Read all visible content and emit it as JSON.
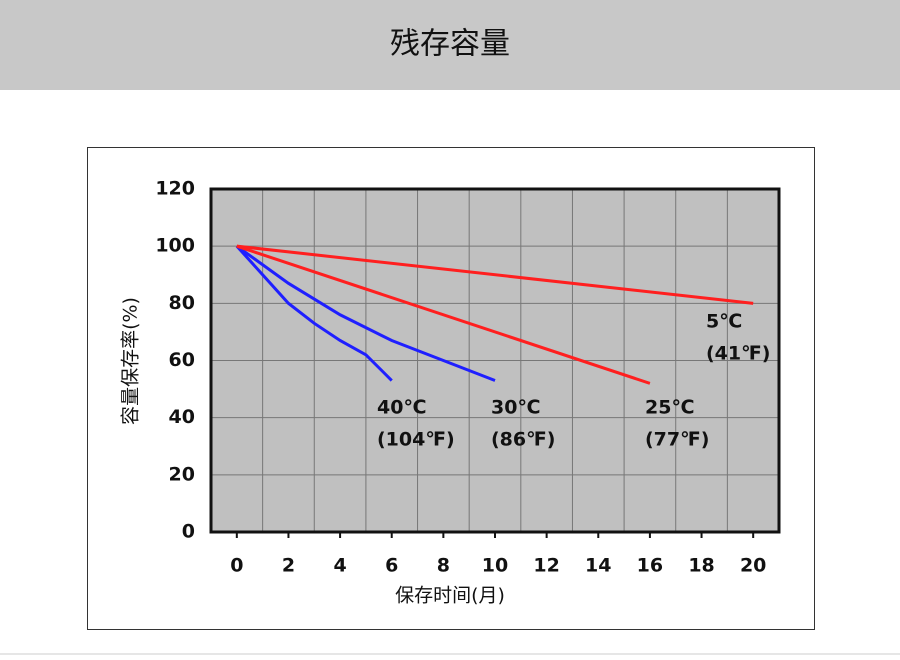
{
  "header": {
    "title": "残存容量"
  },
  "chart_data": {
    "type": "line",
    "x_label": "保存时间(月)",
    "y_label": "容量保存率(%)",
    "xlim": [
      -1,
      21
    ],
    "xticks": [
      0,
      2,
      4,
      6,
      8,
      10,
      12,
      14,
      16,
      18,
      20
    ],
    "ylim": [
      0,
      120
    ],
    "yticks": [
      0,
      20,
      40,
      60,
      80,
      100,
      120
    ],
    "grid": true,
    "series": [
      {
        "name": "40℃",
        "alt_name": "(104℉)",
        "color": "#1f1fff",
        "x": [
          0,
          1,
          2,
          3,
          4,
          5,
          6
        ],
        "values": [
          100,
          90,
          80,
          73,
          67,
          62,
          53
        ]
      },
      {
        "name": "30℃",
        "alt_name": "(86℉)",
        "color": "#1f1fff",
        "x": [
          0,
          2,
          4,
          6,
          8,
          10
        ],
        "values": [
          100,
          87,
          76,
          67,
          60,
          53
        ]
      },
      {
        "name": "25℃",
        "alt_name": "(77℉)",
        "color": "#ff1f1f",
        "x": [
          0,
          16
        ],
        "values": [
          100,
          52
        ]
      },
      {
        "name": "5℃",
        "alt_name": "(41℉)",
        "color": "#ff1f1f",
        "x": [
          0,
          20
        ],
        "values": [
          100,
          80
        ]
      }
    ]
  }
}
